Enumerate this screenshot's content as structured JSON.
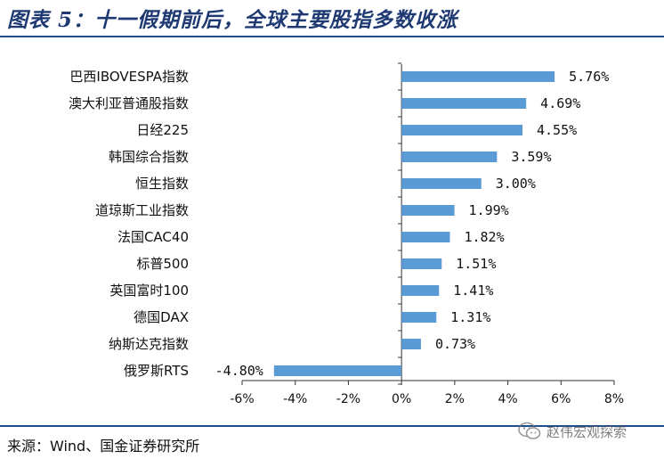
{
  "header": {
    "title": "图表 5：十一假期前后，全球主要股指多数收涨"
  },
  "footer": {
    "source": "来源：Wind、国金证券研究所",
    "watermark": "赵伟宏观探索"
  },
  "colors": {
    "bar": "#5b9bd5",
    "rule": "#1f4e8c",
    "title": "#1f3a73"
  },
  "icons": {
    "watermark": "wechat-logo-icon"
  },
  "chart_data": {
    "type": "bar",
    "orientation": "horizontal",
    "title": "",
    "xlabel": "",
    "ylabel": "",
    "categories": [
      "巴西IBOVESPA指数",
      "澳大利亚普通股指数",
      "日经225",
      "韩国综合指数",
      "恒生指数",
      "道琼斯工业指数",
      "法国CAC40",
      "标普500",
      "英国富时100",
      "德国DAX",
      "纳斯达克指数",
      "俄罗斯RTS"
    ],
    "values": [
      5.76,
      4.69,
      4.55,
      3.59,
      3.0,
      1.99,
      1.82,
      1.51,
      1.41,
      1.31,
      0.73,
      -4.8
    ],
    "value_labels": [
      "5.76%",
      "4.69%",
      "4.55%",
      "3.59%",
      "3.00%",
      "1.99%",
      "1.82%",
      "1.51%",
      "1.41%",
      "1.31%",
      "0.73%",
      "-4.80%"
    ],
    "xlim": [
      -6,
      8
    ],
    "xticks": [
      -6,
      -4,
      -2,
      0,
      2,
      4,
      6,
      8
    ],
    "xtick_labels": [
      "-6%",
      "-4%",
      "-2%",
      "0%",
      "2%",
      "4%",
      "6%",
      "8%"
    ],
    "grid": false,
    "legend": "none"
  }
}
